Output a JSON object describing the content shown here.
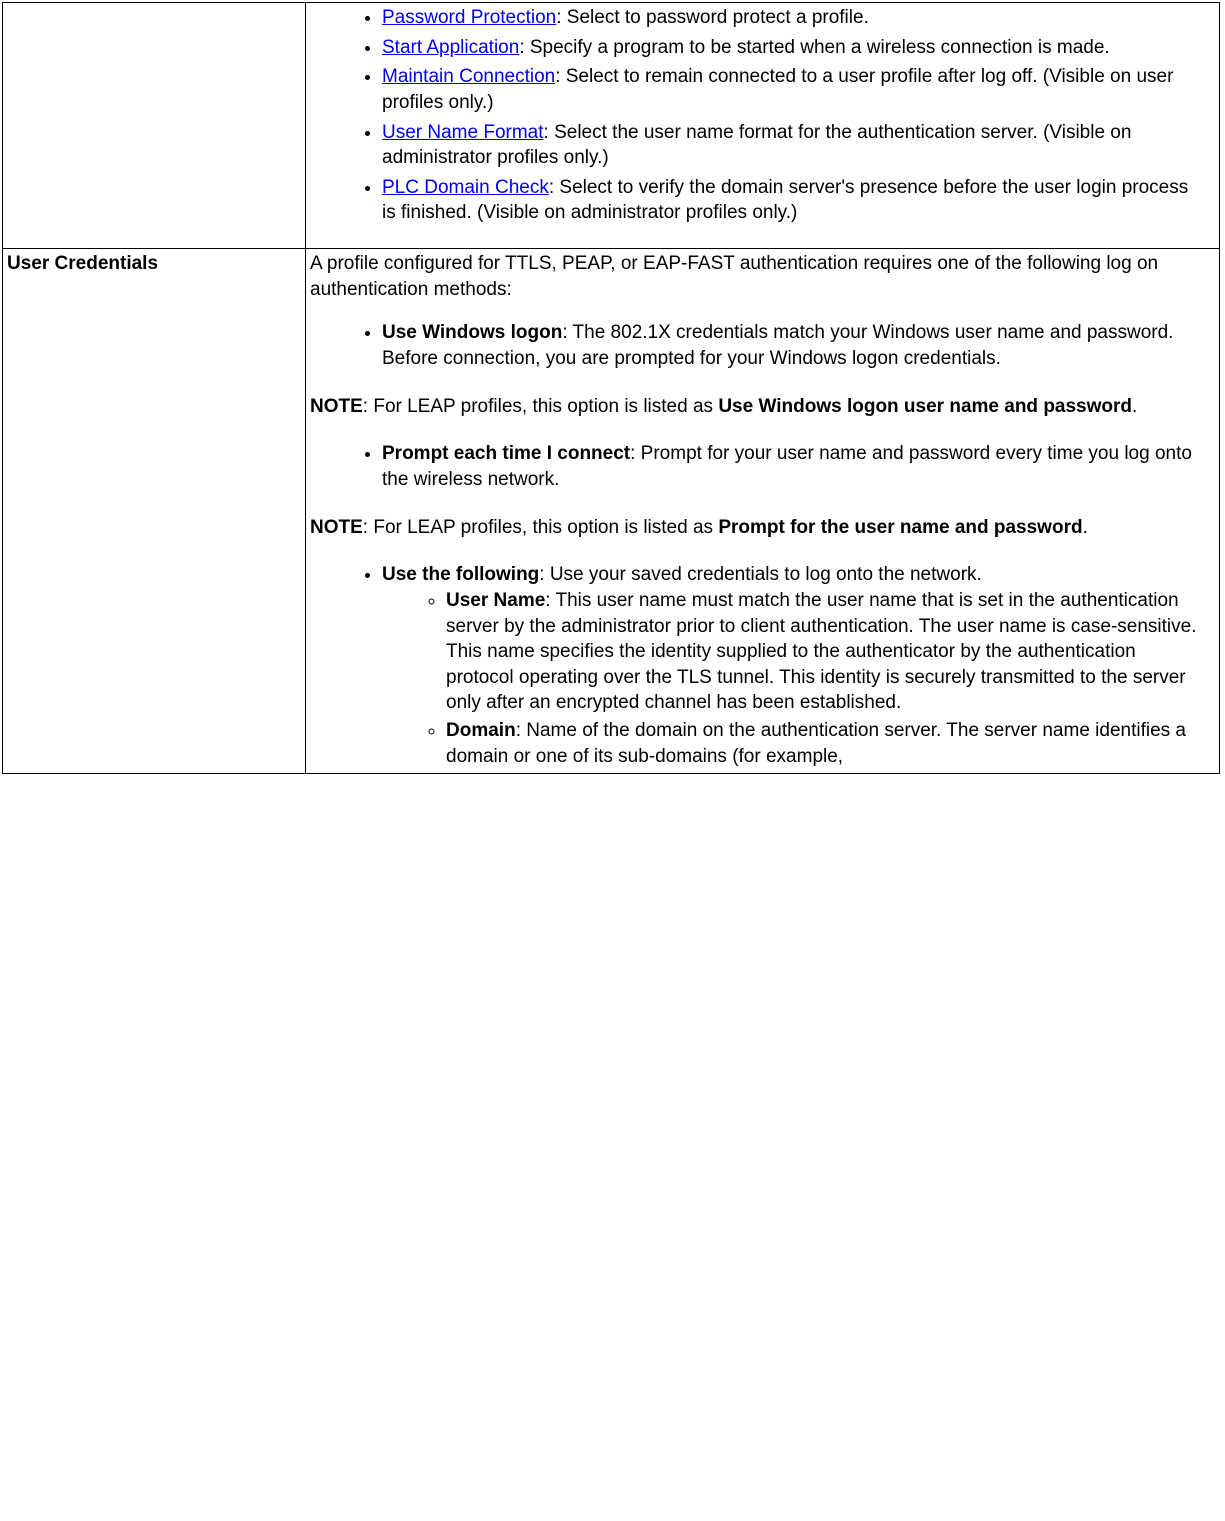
{
  "row1": {
    "items": [
      {
        "link": "Password Protection",
        "text": ": Select to password protect a profile."
      },
      {
        "link": "Start Application",
        "text": ": Specify a program to be started when a wireless connection is made."
      },
      {
        "link": "Maintain Connection",
        "text": ": Select to remain connected to a user profile after log off. (Visible on user profiles only.)"
      },
      {
        "link": "User Name Format",
        "text": ": Select the user name format for the authentication server. (Visible on administrator profiles only.)"
      },
      {
        "link": "PLC Domain Check",
        "text": ": Select to verify the domain server's presence before the user login process is finished. (Visible on administrator profiles only.)"
      }
    ]
  },
  "row2": {
    "label": "User Credentials",
    "intro": "A profile configured for TTLS, PEAP, or EAP-FAST authentication requires one of the following log on authentication methods:",
    "opt1": {
      "bold": "Use Windows logon",
      "text": ": The 802.1X credentials match your Windows user name and password. Before connection, you are prompted for your Windows logon credentials."
    },
    "note1": {
      "pre": "NOTE",
      "mid": ": For LEAP profiles, this option is listed as ",
      "bold": "Use Windows logon user name and password",
      "post": "."
    },
    "opt2": {
      "bold": "Prompt each time I connect",
      "text": ": Prompt for your user name and password every time you log onto the wireless network."
    },
    "note2": {
      "pre": "NOTE",
      "mid": ": For LEAP profiles, this option is listed as ",
      "bold": "Prompt for the user name and password",
      "post": "."
    },
    "opt3": {
      "bold": "Use the following",
      "text": ": Use your saved credentials to log onto the network."
    },
    "sub1": {
      "bold": "User Name",
      "text": ": This user name must match the user name that is set in the authentication server by the administrator prior to client authentication. The user name is case-sensitive. This name specifies the identity supplied to the authenticator by the authentication protocol operating over the TLS tunnel. This identity is securely transmitted to the server only after an encrypted channel has been established."
    },
    "sub2": {
      "bold": "Domain",
      "text": ": Name of the domain on the authentication server. The server name identifies a domain or one of its sub-domains (for example,"
    }
  }
}
